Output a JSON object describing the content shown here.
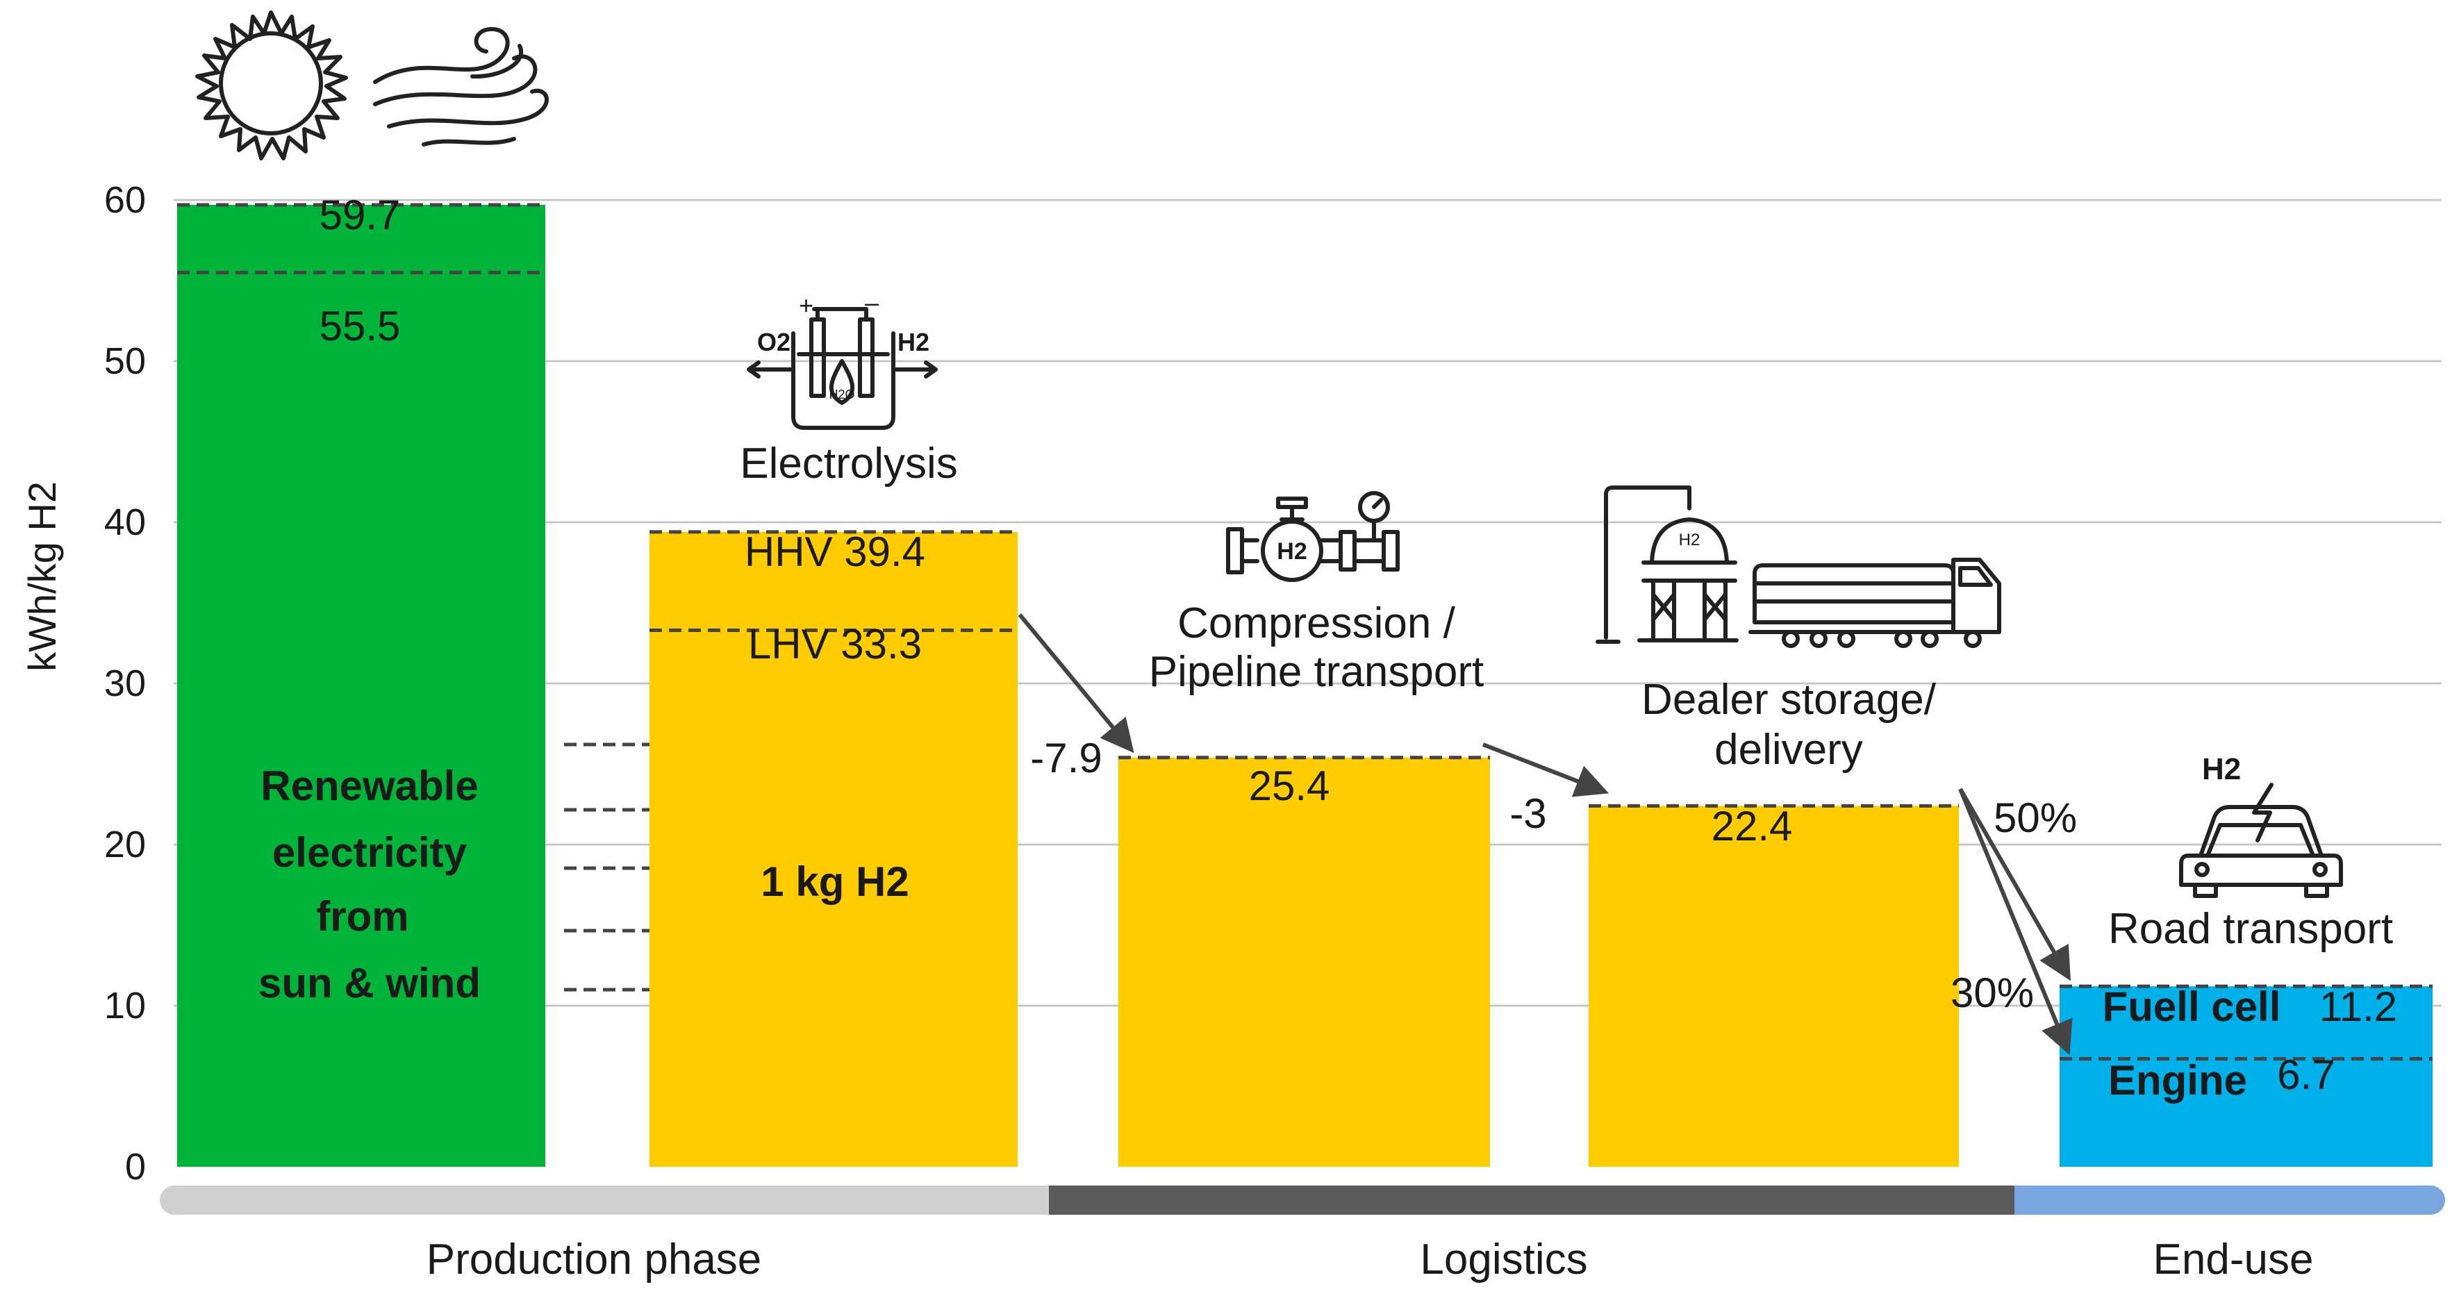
{
  "chart_data": {
    "type": "bar",
    "title": "",
    "ylabel": "kWh/kg  H2",
    "ylim": [
      0,
      60
    ],
    "yticks": [
      "0",
      "10",
      "20",
      "30",
      "40",
      "50",
      "60"
    ],
    "bars": [
      {
        "name": "Renewable electricity",
        "value": 59.7,
        "color": "#00b43a",
        "labels": [
          "59.7",
          "55.5"
        ],
        "inner_values": [
          59.7,
          55.5
        ],
        "body": [
          "Renewable",
          "electricity",
          "from",
          "sun &  wind"
        ]
      },
      {
        "name": "Electrolysis",
        "value": 39.4,
        "color": "#ffcc00",
        "labels": [
          "HHV 39.4",
          "LHV 33.3"
        ],
        "inner_values": [
          39.4,
          33.3
        ],
        "body": [
          "1 kg H2"
        ],
        "caption": [
          "Electrolysis"
        ]
      },
      {
        "name": "Compression / Pipeline transport",
        "value": 25.4,
        "color": "#ffcc00",
        "labels": [
          "25.4"
        ],
        "caption": [
          "Compression /",
          "Pipeline transport"
        ]
      },
      {
        "name": "Dealer storage/delivery",
        "value": 22.4,
        "color": "#ffcc00",
        "labels": [
          "22.4"
        ],
        "caption": [
          "Dealer storage/",
          "delivery"
        ]
      },
      {
        "name": "Road transport",
        "value": 11.2,
        "color": "#00b0e8",
        "labels": [
          "Fuell cell",
          "11.2",
          "Engine",
          "6.7"
        ],
        "inner_values": [
          11.2,
          6.7
        ],
        "caption": [
          "Road transport"
        ]
      }
    ],
    "losses": [
      "-7.9",
      "-3"
    ],
    "efficiencies": [
      "50%",
      "30%"
    ],
    "phases": [
      {
        "label": "Production phase",
        "color": "#d0d0d0"
      },
      {
        "label": "Logistics",
        "color": "#5a5a5a"
      },
      {
        "label": "End-use",
        "color": "#7aa6df"
      }
    ]
  },
  "icons": [
    "sun-icon",
    "wind-icon",
    "electrolyzer-icon",
    "compressor-valve-icon",
    "storage-tank-truck-icon",
    "hydrogen-car-icon"
  ],
  "electrolyzer_text": {
    "o2": "O2",
    "h2": "H2",
    "h2o": "H2O",
    "plus": "+",
    "minus": "–"
  },
  "compressor_text": "H2",
  "tank_text": "H2",
  "car_text": "H2"
}
